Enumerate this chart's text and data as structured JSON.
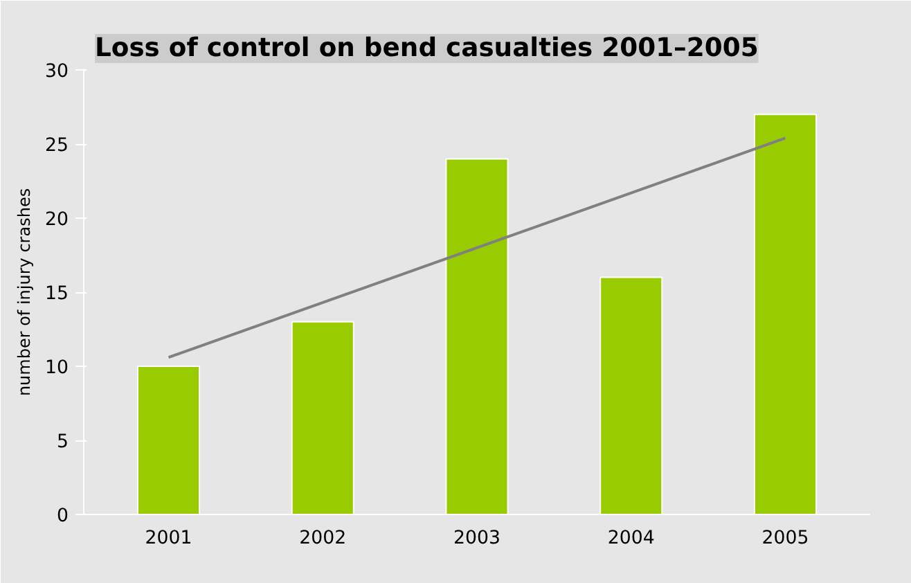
{
  "chart_data": {
    "type": "bar",
    "title": "Loss of control on bend casualties 2001–2005",
    "ylabel": "number of injury crashes",
    "x": [
      2001,
      2002,
      2003,
      2004,
      2005
    ],
    "xlim": [
      2000.45,
      2005.55
    ],
    "xticks": [
      2001,
      2002,
      2003,
      2004,
      2005
    ],
    "ylim": [
      0,
      30
    ],
    "yticks": [
      0,
      5,
      10,
      15,
      20,
      25,
      30
    ],
    "series": [
      {
        "color": "#99cc00",
        "values": [
          10,
          13,
          24,
          16,
          27
        ]
      },
      {
        "type": "line",
        "color": "#808080",
        "x": [
          2001,
          2005
        ],
        "values": [
          10.6,
          25.4
        ]
      }
    ]
  }
}
